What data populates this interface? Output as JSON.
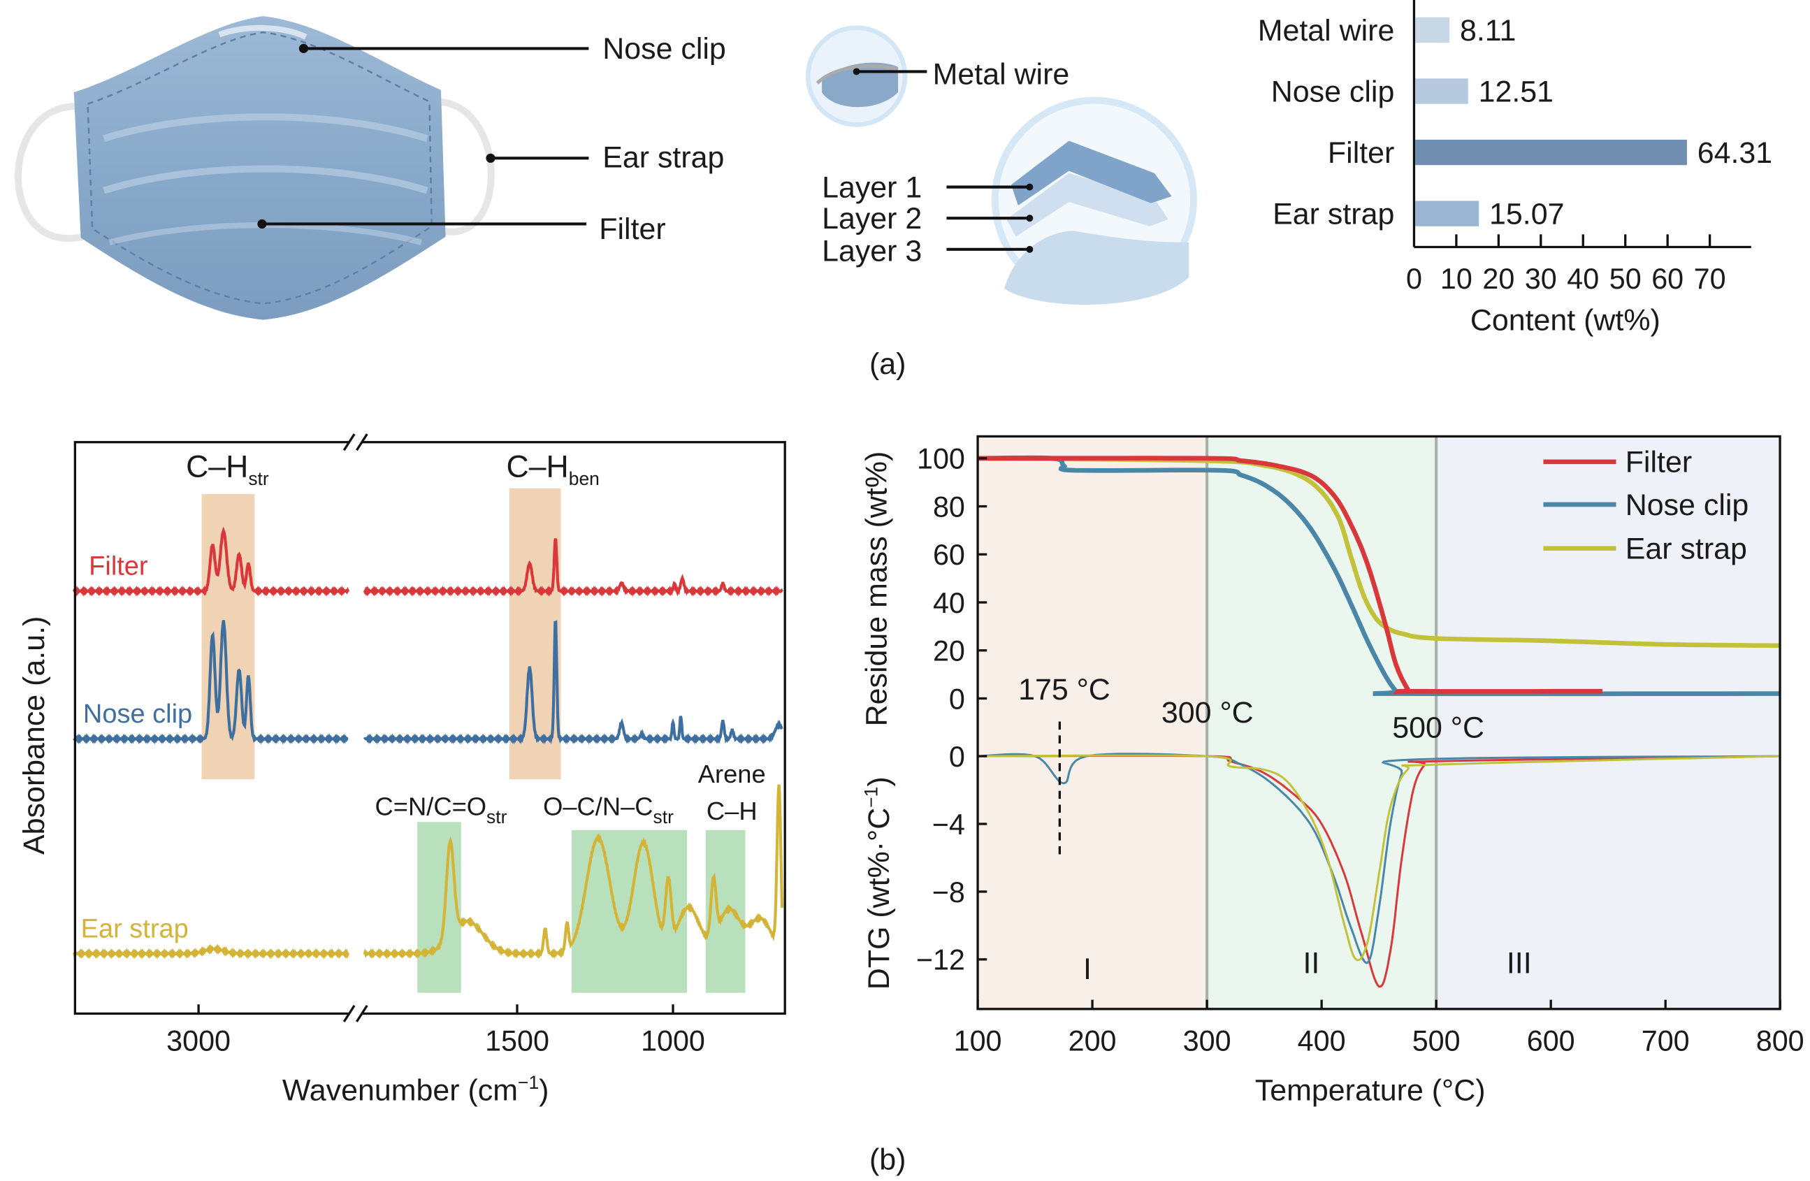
{
  "panel_a": {
    "caption": "(a)",
    "mask_labels": {
      "nose_clip": "Nose clip",
      "ear_strap": "Ear strap",
      "filter": "Filter"
    },
    "detail_labels": {
      "metal_wire": "Metal wire",
      "layer1": "Layer 1",
      "layer2": "Layer 2",
      "layer3": "Layer 3"
    }
  },
  "panel_b": {
    "caption": "(b)"
  },
  "colors": {
    "filter": "#d9373a",
    "nose_clip": "#3f6f9e",
    "ear_strap": "#d4b436",
    "nose_clip_tga": "#4a86a8",
    "ear_strap_tga": "#c2c23a"
  },
  "chart_data": [
    {
      "type": "bar",
      "orientation": "horizontal",
      "categories": [
        "Metal wire",
        "Nose clip",
        "Filter",
        "Ear strap"
      ],
      "values": [
        8.11,
        12.51,
        64.31,
        15.07
      ],
      "value_labels": [
        "8.11",
        "12.51",
        "64.31",
        "15.07"
      ],
      "bar_colors": [
        "#c8d7e6",
        "#b6c9de",
        "#6f8eb0",
        "#9bb6d2"
      ],
      "xlabel": "Content (wt%)",
      "xticks": [
        "0",
        "10",
        "20",
        "30",
        "40",
        "50",
        "60",
        "70"
      ],
      "xlim": [
        0,
        80
      ]
    },
    {
      "type": "line",
      "xlabel_main": "Wavenumber (cm",
      "xlabel_sup": "−1",
      "xlabel_end": ")",
      "ylabel": "Absorbance (a.u.)",
      "axis_break": true,
      "x_segments": [
        [
          3400,
          2520
        ],
        [
          1990,
          650
        ]
      ],
      "xticks": [
        "3000",
        "1500",
        "1000"
      ],
      "bands": [
        {
          "label": "C–H",
          "sub": "str",
          "range": [
            2990,
            2820
          ],
          "color": "#f0d3b4"
        },
        {
          "label": "C–H",
          "sub": "ben",
          "range": [
            1525,
            1360
          ],
          "color": "#f0d3b4"
        },
        {
          "label": "C=N/C=O",
          "sub": "str",
          "range": [
            1820,
            1680
          ],
          "color": "#b8e0bd"
        },
        {
          "label": "O–C/N–C",
          "sub": "str",
          "range": [
            1325,
            955
          ],
          "color": "#b8e0bd"
        },
        {
          "label": "Arene",
          "label2": "C–H",
          "range": [
            895,
            768
          ],
          "color": "#b8e0bd"
        }
      ],
      "series": [
        {
          "name": "Filter",
          "offset": 314,
          "peaks": [
            [
              2955,
              40,
              8
            ],
            [
              2920,
              52,
              10
            ],
            [
              2870,
              32,
              8
            ],
            [
              2840,
              24,
              6
            ],
            [
              1460,
              24,
              8
            ],
            [
              1377,
              46,
              4
            ],
            [
              1165,
              7,
              6
            ],
            [
              995,
              7,
              3
            ],
            [
              970,
              11,
              5
            ],
            [
              840,
              7,
              4
            ]
          ]
        },
        {
          "name": "Nose clip",
          "offset": 186,
          "peaks": [
            [
              2955,
              90,
              8
            ],
            [
              2920,
              102,
              9
            ],
            [
              2870,
              60,
              8
            ],
            [
              2840,
              55,
              6
            ],
            [
              1460,
              62,
              8
            ],
            [
              1377,
              104,
              4
            ],
            [
              1165,
              14,
              6
            ],
            [
              1100,
              4,
              5
            ],
            [
              1000,
              15,
              3
            ],
            [
              975,
              20,
              3
            ],
            [
              840,
              16,
              4
            ],
            [
              810,
              8,
              4
            ],
            [
              660,
              12,
              12
            ]
          ]
        },
        {
          "name": "Ear strap",
          "offset": 0,
          "peaks": [
            [
              2950,
              4,
              30
            ],
            [
              1715,
              82,
              12
            ],
            [
              1660,
              28,
              50
            ],
            [
              1410,
              22,
              5
            ],
            [
              1340,
              24,
              5
            ],
            [
              1240,
              100,
              38
            ],
            [
              1095,
              96,
              32
            ],
            [
              1015,
              55,
              9
            ],
            [
              950,
              40,
              35
            ],
            [
              870,
              50,
              8
            ],
            [
              820,
              38,
              35
            ],
            [
              720,
              30,
              35
            ],
            [
              660,
              140,
              6
            ]
          ]
        }
      ]
    },
    {
      "type": "line",
      "ylabel": "Residue mass (wt%)",
      "ylim": [
        0,
        100
      ],
      "yticks": [
        "0",
        "20",
        "40",
        "60",
        "80",
        "100"
      ],
      "xlim": [
        100,
        800
      ],
      "series": [
        {
          "name": "Filter",
          "points": [
            [
              100,
              100
            ],
            [
              300,
              100
            ],
            [
              330,
              99
            ],
            [
              360,
              97
            ],
            [
              390,
              93
            ],
            [
              410,
              85
            ],
            [
              425,
              73
            ],
            [
              440,
              56
            ],
            [
              455,
              32
            ],
            [
              465,
              14
            ],
            [
              475,
              4
            ],
            [
              480,
              3
            ],
            [
              645,
              3
            ]
          ]
        },
        {
          "name": "Nose clip",
          "points": [
            [
              100,
              100
            ],
            [
              165,
              100
            ],
            [
              175,
              97
            ],
            [
              185,
              95
            ],
            [
              310,
              95
            ],
            [
              330,
              93
            ],
            [
              350,
              89
            ],
            [
              370,
              82
            ],
            [
              390,
              71
            ],
            [
              410,
              55
            ],
            [
              425,
              40
            ],
            [
              440,
              24
            ],
            [
              455,
              10
            ],
            [
              465,
              3
            ],
            [
              470,
              2
            ],
            [
              800,
              2
            ]
          ]
        },
        {
          "name": "Ear strap",
          "points": [
            [
              100,
              100
            ],
            [
              300,
              99
            ],
            [
              350,
              97
            ],
            [
              380,
              93
            ],
            [
              400,
              86
            ],
            [
              415,
              75
            ],
            [
              425,
              60
            ],
            [
              435,
              45
            ],
            [
              445,
              35
            ],
            [
              455,
              30
            ],
            [
              470,
              27
            ],
            [
              500,
              25
            ],
            [
              600,
              24
            ],
            [
              700,
              22.5
            ],
            [
              800,
              22
            ]
          ]
        }
      ]
    },
    {
      "type": "line",
      "ylabel_main": "DTG (wt%·°C",
      "ylabel_sup": "−1",
      "ylabel_end": ")",
      "ylim": [
        -14,
        0
      ],
      "yticks": [
        "0",
        "−4",
        "−8",
        "−12"
      ],
      "xlabel": "Temperature (°C)",
      "xlim": [
        100,
        800
      ],
      "xticks": [
        "100",
        "200",
        "300",
        "400",
        "500",
        "600",
        "700",
        "800"
      ],
      "regions": [
        {
          "label": "I",
          "range": [
            100,
            300
          ],
          "color": "#f8efe9"
        },
        {
          "label": "II",
          "range": [
            300,
            500
          ],
          "color": "#eaf6ee"
        },
        {
          "label": "III",
          "range": [
            500,
            800
          ],
          "color": "#eef1f7"
        }
      ],
      "annotations": [
        "175 °C",
        "300 °C",
        "500 °C"
      ],
      "series": [
        {
          "name": "Filter",
          "points": [
            [
              100,
              0
            ],
            [
              300,
              0
            ],
            [
              320,
              -0.3
            ],
            [
              350,
              -1
            ],
            [
              380,
              -2.5
            ],
            [
              400,
              -4
            ],
            [
              420,
              -7
            ],
            [
              435,
              -10.5
            ],
            [
              450,
              -13.6
            ],
            [
              460,
              -11.5
            ],
            [
              470,
              -6
            ],
            [
              480,
              -2
            ],
            [
              490,
              -0.5
            ],
            [
              500,
              -0.3
            ],
            [
              800,
              0
            ]
          ]
        },
        {
          "name": "Nose clip",
          "points": [
            [
              100,
              0
            ],
            [
              150,
              0
            ],
            [
              175,
              -1.6
            ],
            [
              195,
              0
            ],
            [
              300,
              0
            ],
            [
              330,
              -0.5
            ],
            [
              360,
              -1.8
            ],
            [
              390,
              -4
            ],
            [
              410,
              -7
            ],
            [
              425,
              -10
            ],
            [
              440,
              -12.2
            ],
            [
              450,
              -9
            ],
            [
              460,
              -4
            ],
            [
              470,
              -1
            ],
            [
              480,
              -0.2
            ],
            [
              800,
              0
            ]
          ]
        },
        {
          "name": "Ear strap",
          "points": [
            [
              100,
              0
            ],
            [
              300,
              0
            ],
            [
              320,
              -0.6
            ],
            [
              350,
              -0.8
            ],
            [
              370,
              -1.5
            ],
            [
              390,
              -3.5
            ],
            [
              405,
              -6
            ],
            [
              420,
              -10
            ],
            [
              430,
              -12
            ],
            [
              440,
              -11
            ],
            [
              450,
              -7
            ],
            [
              460,
              -3
            ],
            [
              475,
              -0.8
            ],
            [
              500,
              -0.5
            ],
            [
              800,
              0
            ]
          ]
        }
      ],
      "legend": [
        "Filter",
        "Nose clip",
        "Ear strap"
      ],
      "legend_position": "top-right"
    }
  ]
}
